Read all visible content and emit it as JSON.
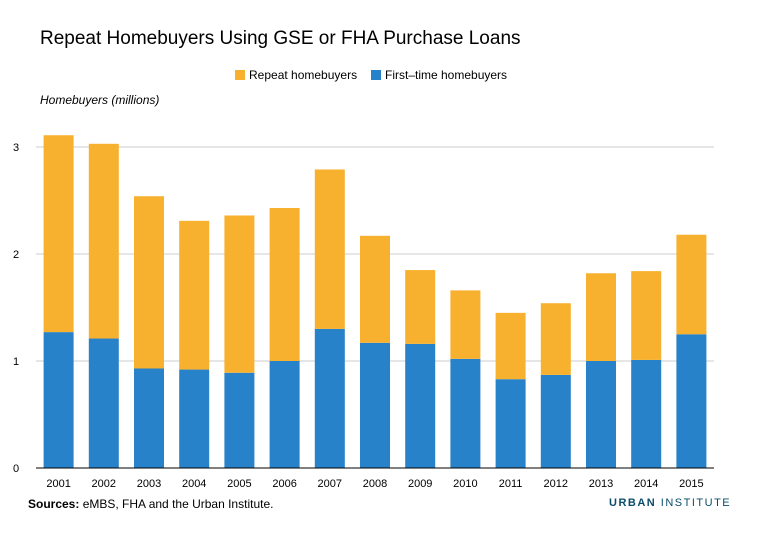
{
  "chart_data": {
    "type": "bar",
    "stacked": true,
    "title": "Repeat Homebuyers Using GSE or FHA Purchase Loans",
    "ylabel": "Homebuyers (millions)",
    "xlabel": "",
    "ylim": [
      0,
      3.3
    ],
    "yticks": [
      0,
      1,
      2,
      3
    ],
    "grid": true,
    "legend_position": "top",
    "categories": [
      "2001",
      "2002",
      "2003",
      "2004",
      "2005",
      "2006",
      "2007",
      "2008",
      "2009",
      "2010",
      "2011",
      "2012",
      "2013",
      "2014",
      "2015"
    ],
    "series": [
      {
        "name": "First-time homebuyers",
        "color": "#2782c9",
        "values": [
          1.27,
          1.21,
          0.93,
          0.92,
          0.89,
          1.0,
          1.3,
          1.17,
          1.16,
          1.02,
          0.83,
          0.87,
          1.0,
          1.01,
          1.25
        ]
      },
      {
        "name": "Repeat homebuyers",
        "color": "#f7b12e",
        "values": [
          1.84,
          1.82,
          1.61,
          1.39,
          1.47,
          1.43,
          1.49,
          1.0,
          0.69,
          0.64,
          0.62,
          0.67,
          0.82,
          0.83,
          0.93
        ]
      }
    ]
  },
  "legend": {
    "repeat_label": "Repeat homebuyers",
    "first_label": "First–time homebuyers"
  },
  "footer": {
    "source_label": "Sources:",
    "source_text": " eMBS, FHA and the Urban Institute.",
    "brand_part1": "URBAN",
    "brand_part2": "INSTITUTE"
  },
  "colors": {
    "first_time": "#2782c9",
    "repeat": "#f7b12e",
    "grid": "#cccccc",
    "brand": "#0a4c6a"
  }
}
